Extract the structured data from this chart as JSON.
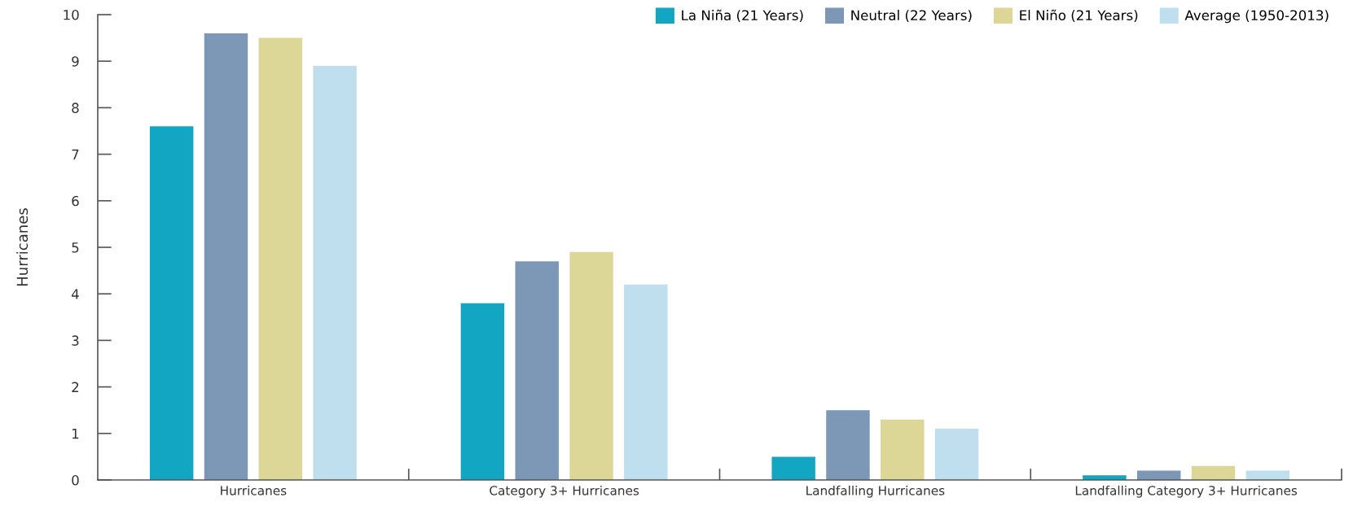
{
  "chart_data": {
    "type": "bar",
    "ylabel": "Hurricanes",
    "categories": [
      "Hurricanes",
      "Category 3+ Hurricanes",
      "Landfalling Hurricanes",
      "Landfalling Category 3+ Hurricanes"
    ],
    "series": [
      {
        "name": "La Niña (21 Years)",
        "color": "#13a6c2",
        "values": [
          7.6,
          3.8,
          0.5,
          0.1
        ]
      },
      {
        "name": "Neutral (22 Years)",
        "color": "#7d97b7",
        "values": [
          9.6,
          4.7,
          1.5,
          0.2
        ]
      },
      {
        "name": "El Niño (21 Years)",
        "color": "#dcd797",
        "values": [
          9.5,
          4.9,
          1.3,
          0.3
        ]
      },
      {
        "name": "Average (1950-2013)",
        "color": "#bfdfee",
        "values": [
          8.9,
          4.2,
          1.1,
          0.2
        ]
      }
    ],
    "ylim": [
      0,
      10
    ],
    "yticks": [
      0,
      1,
      2,
      3,
      4,
      5,
      6,
      7,
      8,
      9,
      10
    ],
    "grid": false,
    "legend": "top right"
  }
}
